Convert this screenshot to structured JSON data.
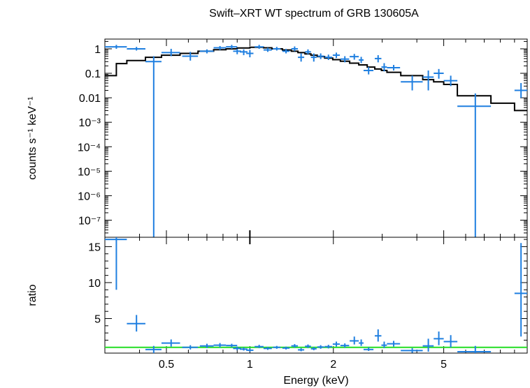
{
  "chart_data": {
    "type": "scatter",
    "title": "Swift–XRT WT spectrum of GRB 130605A",
    "xlabel": "Energy (keV)",
    "x_scale": "log",
    "xlim": [
      0.3,
      10
    ],
    "x_ticks": [
      {
        "value": 0.5,
        "label": "0.5"
      },
      {
        "value": 1,
        "label": "1"
      },
      {
        "value": 2,
        "label": "2"
      },
      {
        "value": 5,
        "label": "5"
      }
    ],
    "colors": {
      "data": "#1f7fe0",
      "model": "#000000",
      "unity": "#22dd22"
    },
    "panels": [
      {
        "name": "spectrum",
        "ylabel": "counts s⁻¹ keV⁻¹",
        "y_scale": "log",
        "ylim": [
          2e-08,
          2.5
        ],
        "y_ticks": [
          {
            "value": 1,
            "label": "1"
          },
          {
            "value": 0.1,
            "label": "0.1"
          },
          {
            "value": 0.01,
            "label": "0.01"
          },
          {
            "value": 0.001,
            "label": "10⁻³"
          },
          {
            "value": 0.0001,
            "label": "10⁻⁴"
          },
          {
            "value": 1e-05,
            "label": "10⁻⁵"
          },
          {
            "value": 1e-06,
            "label": "10⁻⁶"
          },
          {
            "value": 1e-07,
            "label": "10⁻⁷"
          }
        ],
        "data": [
          {
            "x": 0.33,
            "xlo": 0.3,
            "xhi": 0.36,
            "y": 1.2,
            "ylo": 1.0,
            "yhi": 1.45
          },
          {
            "x": 0.39,
            "xlo": 0.36,
            "xhi": 0.42,
            "y": 1.0,
            "ylo": 0.85,
            "yhi": 1.2
          },
          {
            "x": 0.45,
            "xlo": 0.42,
            "xhi": 0.48,
            "y": 0.3,
            "ylo": 2e-08,
            "yhi": 0.5
          },
          {
            "x": 0.52,
            "xlo": 0.48,
            "xhi": 0.56,
            "y": 0.7,
            "ylo": 0.5,
            "yhi": 1.0
          },
          {
            "x": 0.61,
            "xlo": 0.57,
            "xhi": 0.65,
            "y": 0.5,
            "ylo": 0.33,
            "yhi": 0.75
          },
          {
            "x": 0.7,
            "xlo": 0.66,
            "xhi": 0.74,
            "y": 0.8,
            "ylo": 0.65,
            "yhi": 0.95
          },
          {
            "x": 0.78,
            "xlo": 0.74,
            "xhi": 0.82,
            "y": 1.1,
            "ylo": 0.9,
            "yhi": 1.3
          },
          {
            "x": 0.86,
            "xlo": 0.82,
            "xhi": 0.9,
            "y": 1.2,
            "ylo": 1.0,
            "yhi": 1.45
          },
          {
            "x": 0.9,
            "xlo": 0.87,
            "xhi": 0.93,
            "y": 0.8,
            "ylo": 0.6,
            "yhi": 1.0
          },
          {
            "x": 0.95,
            "xlo": 0.92,
            "xhi": 0.98,
            "y": 0.75,
            "ylo": 0.55,
            "yhi": 0.95
          },
          {
            "x": 1.0,
            "xlo": 0.97,
            "xhi": 1.03,
            "y": 0.65,
            "ylo": 0.45,
            "yhi": 0.9
          },
          {
            "x": 1.08,
            "xlo": 1.04,
            "xhi": 1.12,
            "y": 1.2,
            "ylo": 1.0,
            "yhi": 1.45
          },
          {
            "x": 1.16,
            "xlo": 1.12,
            "xhi": 1.2,
            "y": 0.9,
            "ylo": 0.75,
            "yhi": 1.1
          },
          {
            "x": 1.25,
            "xlo": 1.21,
            "xhi": 1.29,
            "y": 1.0,
            "ylo": 0.85,
            "yhi": 1.2
          },
          {
            "x": 1.35,
            "xlo": 1.31,
            "xhi": 1.39,
            "y": 0.8,
            "ylo": 0.65,
            "yhi": 1.0
          },
          {
            "x": 1.45,
            "xlo": 1.41,
            "xhi": 1.49,
            "y": 1.0,
            "ylo": 0.8,
            "yhi": 1.25
          },
          {
            "x": 1.53,
            "xlo": 1.49,
            "xhi": 1.57,
            "y": 0.45,
            "ylo": 0.3,
            "yhi": 0.65
          },
          {
            "x": 1.62,
            "xlo": 1.58,
            "xhi": 1.66,
            "y": 0.75,
            "ylo": 0.6,
            "yhi": 0.95
          },
          {
            "x": 1.7,
            "xlo": 1.66,
            "xhi": 1.74,
            "y": 0.45,
            "ylo": 0.3,
            "yhi": 0.65
          },
          {
            "x": 1.8,
            "xlo": 1.75,
            "xhi": 1.85,
            "y": 0.5,
            "ylo": 0.38,
            "yhi": 0.65
          },
          {
            "x": 1.92,
            "xlo": 1.86,
            "xhi": 1.98,
            "y": 0.45,
            "ylo": 0.35,
            "yhi": 0.58
          },
          {
            "x": 2.05,
            "xlo": 1.99,
            "xhi": 2.11,
            "y": 0.55,
            "ylo": 0.42,
            "yhi": 0.7
          },
          {
            "x": 2.2,
            "xlo": 2.12,
            "xhi": 2.28,
            "y": 0.38,
            "ylo": 0.28,
            "yhi": 0.5
          },
          {
            "x": 2.38,
            "xlo": 2.29,
            "xhi": 2.47,
            "y": 0.48,
            "ylo": 0.36,
            "yhi": 0.62
          },
          {
            "x": 2.52,
            "xlo": 2.47,
            "xhi": 2.57,
            "y": 0.35,
            "ylo": 0.26,
            "yhi": 0.47
          },
          {
            "x": 2.68,
            "xlo": 2.57,
            "xhi": 2.79,
            "y": 0.13,
            "ylo": 0.09,
            "yhi": 0.18
          },
          {
            "x": 2.9,
            "xlo": 2.82,
            "xhi": 2.98,
            "y": 0.4,
            "ylo": 0.28,
            "yhi": 0.55
          },
          {
            "x": 3.05,
            "xlo": 2.98,
            "xhi": 3.12,
            "y": 0.18,
            "ylo": 0.12,
            "yhi": 0.26
          },
          {
            "x": 3.3,
            "xlo": 3.12,
            "xhi": 3.48,
            "y": 0.17,
            "ylo": 0.13,
            "yhi": 0.22
          },
          {
            "x": 3.85,
            "xlo": 3.5,
            "xhi": 4.2,
            "y": 0.045,
            "ylo": 0.02,
            "yhi": 0.08
          },
          {
            "x": 4.4,
            "xlo": 4.2,
            "xhi": 4.6,
            "y": 0.07,
            "ylo": 0.02,
            "yhi": 0.13
          },
          {
            "x": 4.8,
            "xlo": 4.6,
            "xhi": 5.0,
            "y": 0.1,
            "ylo": 0.06,
            "yhi": 0.15
          },
          {
            "x": 5.3,
            "xlo": 5.0,
            "xhi": 5.6,
            "y": 0.05,
            "ylo": 0.03,
            "yhi": 0.08
          },
          {
            "x": 6.5,
            "xlo": 5.6,
            "xhi": 7.4,
            "y": 0.0045,
            "ylo": 2e-08,
            "yhi": 0.015
          },
          {
            "x": 9.5,
            "xlo": 9.0,
            "xhi": 10.0,
            "y": 0.02,
            "ylo": 0.01,
            "yhi": 0.04
          }
        ],
        "model_steps": [
          {
            "x0": 0.3,
            "x1": 0.33,
            "y": 0.08
          },
          {
            "x0": 0.33,
            "x1": 0.36,
            "y": 0.25
          },
          {
            "x0": 0.36,
            "x1": 0.42,
            "y": 0.33
          },
          {
            "x0": 0.42,
            "x1": 0.48,
            "y": 0.45
          },
          {
            "x0": 0.48,
            "x1": 0.56,
            "y": 0.55
          },
          {
            "x0": 0.56,
            "x1": 0.65,
            "y": 0.65
          },
          {
            "x0": 0.65,
            "x1": 0.74,
            "y": 0.8
          },
          {
            "x0": 0.74,
            "x1": 0.82,
            "y": 0.92
          },
          {
            "x0": 0.82,
            "x1": 0.9,
            "y": 1.0
          },
          {
            "x0": 0.9,
            "x1": 1.0,
            "y": 1.08
          },
          {
            "x0": 1.0,
            "x1": 1.12,
            "y": 1.15
          },
          {
            "x0": 1.12,
            "x1": 1.2,
            "y": 1.1
          },
          {
            "x0": 1.2,
            "x1": 1.31,
            "y": 1.0
          },
          {
            "x0": 1.31,
            "x1": 1.41,
            "y": 0.9
          },
          {
            "x0": 1.41,
            "x1": 1.49,
            "y": 0.8
          },
          {
            "x0": 1.49,
            "x1": 1.58,
            "y": 0.7
          },
          {
            "x0": 1.58,
            "x1": 1.66,
            "y": 0.62
          },
          {
            "x0": 1.66,
            "x1": 1.75,
            "y": 0.55
          },
          {
            "x0": 1.75,
            "x1": 1.86,
            "y": 0.48
          },
          {
            "x0": 1.86,
            "x1": 1.99,
            "y": 0.42
          },
          {
            "x0": 1.99,
            "x1": 2.12,
            "y": 0.36
          },
          {
            "x0": 2.12,
            "x1": 2.29,
            "y": 0.31
          },
          {
            "x0": 2.29,
            "x1": 2.47,
            "y": 0.26
          },
          {
            "x0": 2.47,
            "x1": 2.65,
            "y": 0.22
          },
          {
            "x0": 2.65,
            "x1": 2.82,
            "y": 0.18
          },
          {
            "x0": 2.82,
            "x1": 2.98,
            "y": 0.15
          },
          {
            "x0": 2.98,
            "x1": 3.12,
            "y": 0.13
          },
          {
            "x0": 3.12,
            "x1": 3.5,
            "y": 0.11
          },
          {
            "x0": 3.5,
            "x1": 4.2,
            "y": 0.08
          },
          {
            "x0": 4.2,
            "x1": 4.6,
            "y": 0.055
          },
          {
            "x0": 4.6,
            "x1": 5.0,
            "y": 0.045
          },
          {
            "x0": 5.0,
            "x1": 5.6,
            "y": 0.035
          },
          {
            "x0": 5.6,
            "x1": 7.4,
            "y": 0.012
          },
          {
            "x0": 7.4,
            "x1": 9.0,
            "y": 0.006
          },
          {
            "x0": 9.0,
            "x1": 10.0,
            "y": 0.003
          }
        ]
      },
      {
        "name": "ratio",
        "ylabel": "ratio",
        "y_scale": "linear",
        "ylim": [
          0.2,
          16.3
        ],
        "y_ticks": [
          {
            "value": 5,
            "label": "5"
          },
          {
            "value": 10,
            "label": "10"
          },
          {
            "value": 15,
            "label": "15"
          }
        ],
        "unity_line": 1,
        "data": [
          {
            "x": 0.33,
            "xlo": 0.3,
            "xhi": 0.36,
            "y": 16.0,
            "ylo": 9.0,
            "yhi": 16.3
          },
          {
            "x": 0.39,
            "xlo": 0.36,
            "xhi": 0.42,
            "y": 4.3,
            "ylo": 3.2,
            "yhi": 5.5
          },
          {
            "x": 0.45,
            "xlo": 0.42,
            "xhi": 0.48,
            "y": 0.7,
            "ylo": 0.2,
            "yhi": 1.2
          },
          {
            "x": 0.52,
            "xlo": 0.48,
            "xhi": 0.56,
            "y": 1.6,
            "ylo": 1.1,
            "yhi": 2.1
          },
          {
            "x": 0.61,
            "xlo": 0.57,
            "xhi": 0.65,
            "y": 1.0,
            "ylo": 0.7,
            "yhi": 1.3
          },
          {
            "x": 0.7,
            "xlo": 0.66,
            "xhi": 0.74,
            "y": 1.2,
            "ylo": 0.9,
            "yhi": 1.5
          },
          {
            "x": 0.78,
            "xlo": 0.74,
            "xhi": 0.82,
            "y": 1.3,
            "ylo": 1.0,
            "yhi": 1.6
          },
          {
            "x": 0.86,
            "xlo": 0.82,
            "xhi": 0.9,
            "y": 1.25,
            "ylo": 1.0,
            "yhi": 1.5
          },
          {
            "x": 0.9,
            "xlo": 0.87,
            "xhi": 0.93,
            "y": 0.85,
            "ylo": 0.6,
            "yhi": 1.1
          },
          {
            "x": 0.95,
            "xlo": 0.92,
            "xhi": 0.98,
            "y": 0.75,
            "ylo": 0.55,
            "yhi": 1.0
          },
          {
            "x": 1.0,
            "xlo": 0.97,
            "xhi": 1.03,
            "y": 0.6,
            "ylo": 0.4,
            "yhi": 0.85
          },
          {
            "x": 1.08,
            "xlo": 1.04,
            "xhi": 1.12,
            "y": 1.1,
            "ylo": 0.9,
            "yhi": 1.35
          },
          {
            "x": 1.16,
            "xlo": 1.12,
            "xhi": 1.2,
            "y": 0.85,
            "ylo": 0.65,
            "yhi": 1.05
          },
          {
            "x": 1.25,
            "xlo": 1.21,
            "xhi": 1.29,
            "y": 1.0,
            "ylo": 0.8,
            "yhi": 1.2
          },
          {
            "x": 1.35,
            "xlo": 1.31,
            "xhi": 1.39,
            "y": 0.9,
            "ylo": 0.7,
            "yhi": 1.1
          },
          {
            "x": 1.45,
            "xlo": 1.41,
            "xhi": 1.49,
            "y": 1.2,
            "ylo": 0.95,
            "yhi": 1.45
          },
          {
            "x": 1.53,
            "xlo": 1.49,
            "xhi": 1.57,
            "y": 0.65,
            "ylo": 0.45,
            "yhi": 0.9
          },
          {
            "x": 1.62,
            "xlo": 1.58,
            "xhi": 1.66,
            "y": 1.15,
            "ylo": 0.9,
            "yhi": 1.4
          },
          {
            "x": 1.7,
            "xlo": 1.66,
            "xhi": 1.74,
            "y": 0.8,
            "ylo": 0.6,
            "yhi": 1.05
          },
          {
            "x": 1.8,
            "xlo": 1.75,
            "xhi": 1.85,
            "y": 1.05,
            "ylo": 0.8,
            "yhi": 1.3
          },
          {
            "x": 1.92,
            "xlo": 1.86,
            "xhi": 1.98,
            "y": 1.1,
            "ylo": 0.85,
            "yhi": 1.35
          },
          {
            "x": 2.05,
            "xlo": 1.99,
            "xhi": 2.11,
            "y": 1.45,
            "ylo": 1.1,
            "yhi": 1.8
          },
          {
            "x": 2.2,
            "xlo": 2.12,
            "xhi": 2.28,
            "y": 1.25,
            "ylo": 0.95,
            "yhi": 1.55
          },
          {
            "x": 2.38,
            "xlo": 2.29,
            "xhi": 2.47,
            "y": 1.9,
            "ylo": 1.4,
            "yhi": 2.5
          },
          {
            "x": 2.52,
            "xlo": 2.47,
            "xhi": 2.57,
            "y": 1.6,
            "ylo": 1.2,
            "yhi": 2.1
          },
          {
            "x": 2.68,
            "xlo": 2.57,
            "xhi": 2.79,
            "y": 0.7,
            "ylo": 0.5,
            "yhi": 1.0
          },
          {
            "x": 2.9,
            "xlo": 2.82,
            "xhi": 2.98,
            "y": 2.6,
            "ylo": 1.8,
            "yhi": 3.5
          },
          {
            "x": 3.05,
            "xlo": 2.98,
            "xhi": 3.12,
            "y": 1.3,
            "ylo": 0.9,
            "yhi": 1.8
          },
          {
            "x": 3.3,
            "xlo": 3.12,
            "xhi": 3.48,
            "y": 1.5,
            "ylo": 1.1,
            "yhi": 1.9
          },
          {
            "x": 3.85,
            "xlo": 3.5,
            "xhi": 4.2,
            "y": 0.55,
            "ylo": 0.25,
            "yhi": 0.9
          },
          {
            "x": 4.4,
            "xlo": 4.2,
            "xhi": 4.6,
            "y": 1.2,
            "ylo": 0.4,
            "yhi": 2.2
          },
          {
            "x": 4.8,
            "xlo": 4.6,
            "xhi": 5.0,
            "y": 2.2,
            "ylo": 1.3,
            "yhi": 3.2
          },
          {
            "x": 5.3,
            "xlo": 5.0,
            "xhi": 5.6,
            "y": 1.8,
            "ylo": 1.0,
            "yhi": 2.7
          },
          {
            "x": 6.5,
            "xlo": 5.6,
            "xhi": 7.4,
            "y": 0.4,
            "ylo": 0.2,
            "yhi": 1.2
          },
          {
            "x": 9.5,
            "xlo": 9.0,
            "xhi": 10.0,
            "y": 8.5,
            "ylo": 2.5,
            "yhi": 15.5
          }
        ]
      }
    ]
  }
}
